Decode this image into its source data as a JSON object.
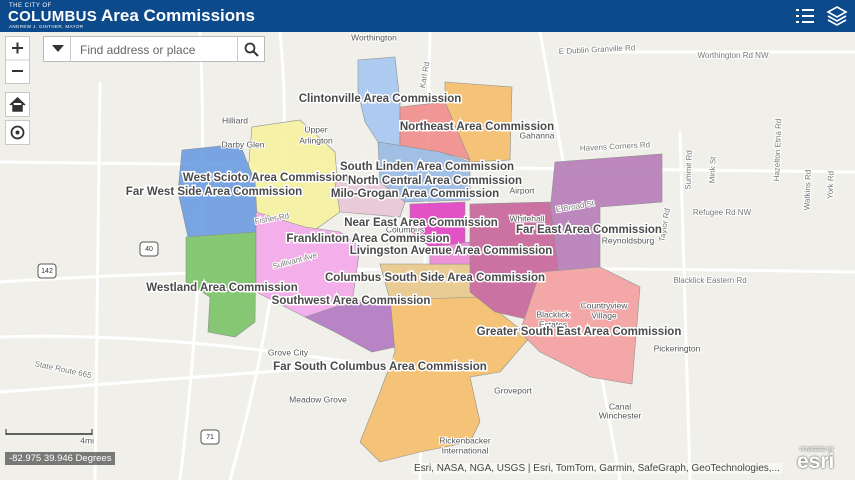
{
  "header": {
    "logo_small": "THE CITY OF",
    "logo": "COLUMBUS",
    "logo_tagline": "ANDREW J. GINTHER, MAYOR",
    "title": "Area Commissions"
  },
  "search": {
    "placeholder": "Find address or place"
  },
  "map": {
    "commissions": [
      "Clintonville Area Commission",
      "Northeast Area Commission",
      "South Linden Area Commission",
      "West Scioto Area Commission",
      "North Central Area Commission",
      "Far West Side Area Commission",
      "Milo-Grogan Area Commission",
      "Near East Area Commission",
      "Far East Area Commission",
      "Franklinton Area Commission",
      "Livingston Avenue Area Commission",
      "Columbus South Side Area Commission",
      "Westland Area Commission",
      "Southwest Area Commission",
      "Greater South East Area Commission",
      "Far South Columbus Area Commission"
    ],
    "places": [
      "Worthington",
      "Hilliard",
      "Darby Glen",
      "Upper",
      "Arlington",
      "Gahanna",
      "Whitehall",
      "Reynoldsburg",
      "Countryview",
      "Village",
      "Blacklick",
      "Estates",
      "Pickerington",
      "Grove City",
      "Groveport",
      "Canal",
      "Winchester",
      "Meadow Grove",
      "Rickenbacker",
      "International",
      "Airport",
      "Columbus"
    ],
    "roads": [
      "E Dublin Granville Rd",
      "Worthington Rd NW",
      "Havens Corners Rd",
      "Refugee Rd NW",
      "Blacklick Eastern Rd",
      "State Route 665",
      "Karl Rd",
      "E Broad St",
      "Sullivant Ave",
      "Fisher Rd",
      "Summit Rd",
      "Mink St",
      "Taylor Rd",
      "Hazelton Etna Rd",
      "Watkins Rd",
      "York Rd"
    ],
    "shields": [
      "40",
      "142",
      "71"
    ]
  },
  "scale": "4mi",
  "coordinates": "-82.975 39.946 Degrees",
  "attribution": "Esri, NASA, NGA, USGS | Esri, TomTom, Garmin, SafeGraph, GeoTechnologies,...",
  "esri": {
    "powered": "POWERED BY",
    "logo": "esri"
  }
}
